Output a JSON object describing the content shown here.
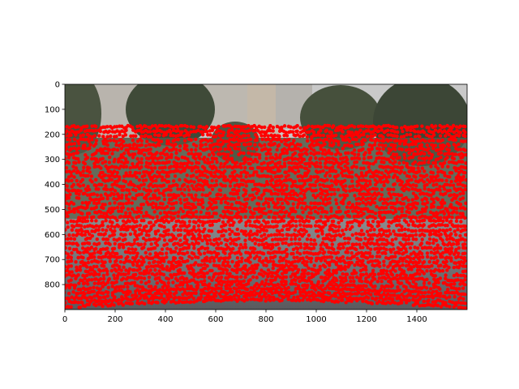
{
  "chart_data": {
    "type": "scatter",
    "title": "",
    "xlabel": "",
    "ylabel": "",
    "xlim": [
      0,
      1600
    ],
    "ylim": [
      900,
      0
    ],
    "x_ticks": [
      0,
      200,
      400,
      600,
      800,
      1000,
      1200,
      1400
    ],
    "y_ticks": [
      0,
      100,
      200,
      300,
      400,
      500,
      600,
      700,
      800
    ],
    "grid": false,
    "legend": "none",
    "background": "photograph of apartment buildings, trees and a paved plaza",
    "series": [
      {
        "marker_color": "#ff0000",
        "pattern": "dense horizontal scan lines of projected lidar points",
        "y_start": 170,
        "y_end": 900,
        "line_spacing": 18,
        "sparse_band": [
          200,
          820
        ]
      }
    ]
  },
  "colors": {
    "points": "#ff0000",
    "sky": "#c9c9c9",
    "building": "#b9b4ad",
    "trees": "#3f4a38",
    "ground": "#6f6f72"
  }
}
